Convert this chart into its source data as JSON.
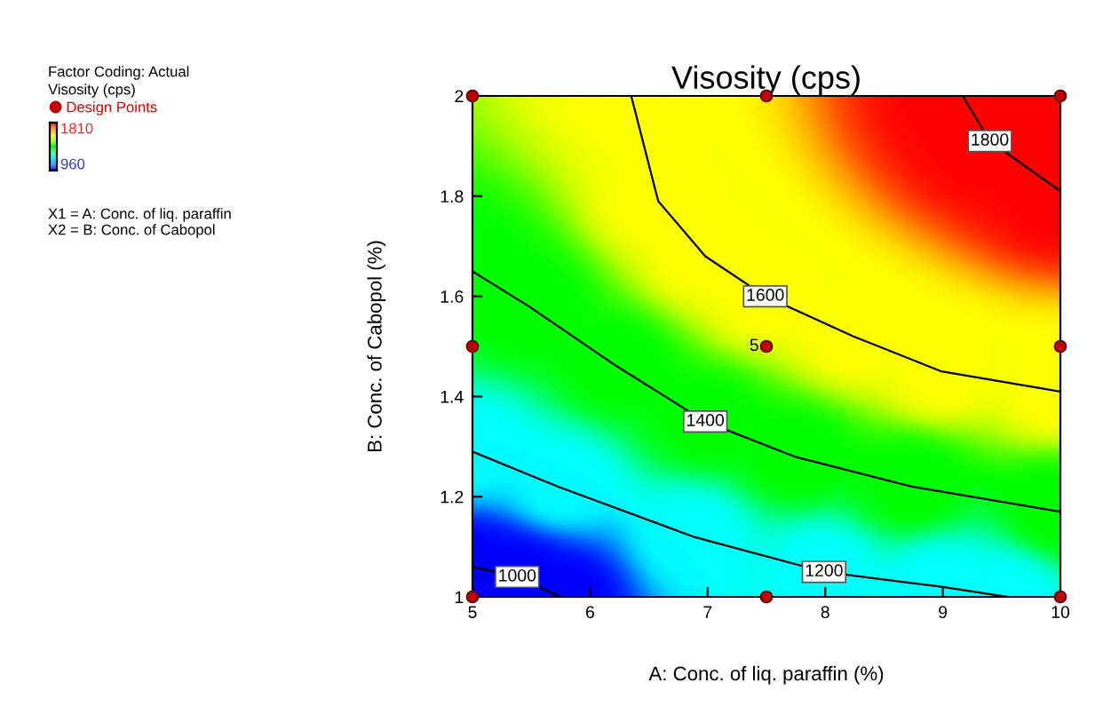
{
  "chart_data": {
    "type": "line",
    "title": "Visosity (cps)",
    "xlabel": "A: Conc. of liq. paraffin (%)",
    "ylabel": "B: Conc. of Cabopol (%)",
    "xlim": [
      5,
      10
    ],
    "xticks": [
      5,
      6,
      7,
      8,
      9,
      10
    ],
    "ylim": [
      1,
      2
    ],
    "yticks": [
      1,
      1.2,
      1.4,
      1.6,
      1.8,
      2
    ],
    "clabel": "Visosity (cps)",
    "grid": false,
    "legend": "left",
    "marker": "none",
    "line_style": "solid",
    "series": [
      {
        "type": "line",
        "name": "1000",
        "color": "#000000",
        "x": [
          5,
          5.38,
          5.75
        ],
        "values": [
          1.06,
          1.04,
          1.0
        ]
      },
      {
        "type": "line",
        "name": "1200",
        "color": "#000000",
        "x": [
          5,
          5.73,
          6.88,
          7.99,
          8.99,
          9.55
        ],
        "values": [
          1.29,
          1.22,
          1.12,
          1.05,
          1.02,
          1.0
        ]
      },
      {
        "type": "line",
        "name": "1400",
        "color": "#000000",
        "x": [
          5,
          5.48,
          6.23,
          6.98,
          7.74,
          8.74,
          10
        ],
        "values": [
          1.65,
          1.58,
          1.46,
          1.35,
          1.28,
          1.22,
          1.17
        ]
      },
      {
        "type": "line",
        "name": "1600",
        "color": "#000000",
        "x": [
          6.35,
          6.58,
          6.98,
          7.49,
          8.24,
          8.99,
          10
        ],
        "values": [
          2.0,
          1.79,
          1.68,
          1.6,
          1.52,
          1.45,
          1.41
        ]
      },
      {
        "type": "line",
        "name": "1800",
        "color": "#000000",
        "x": [
          9.17,
          9.4,
          10
        ],
        "values": [
          2.0,
          1.91,
          1.81
        ]
      },
      {
        "type": "scatter",
        "name": "Design Points",
        "color": "#c00000",
        "marker": "circle",
        "x": [
          5,
          7.5,
          10,
          5,
          7.5,
          10,
          5,
          7.5,
          10
        ],
        "values": [
          1,
          1,
          1,
          1.5,
          1.5,
          1.5,
          2,
          2,
          2
        ]
      }
    ],
    "annotations": [
      "Factor Coding: Actual",
      "1810",
      "960",
      "X1 = A: Conc. of liq. paraffin",
      "X2 = B: Conc. of Cabopol",
      {
        "text": "5",
        "x": 7.5,
        "y": 1.5
      }
    ]
  }
}
